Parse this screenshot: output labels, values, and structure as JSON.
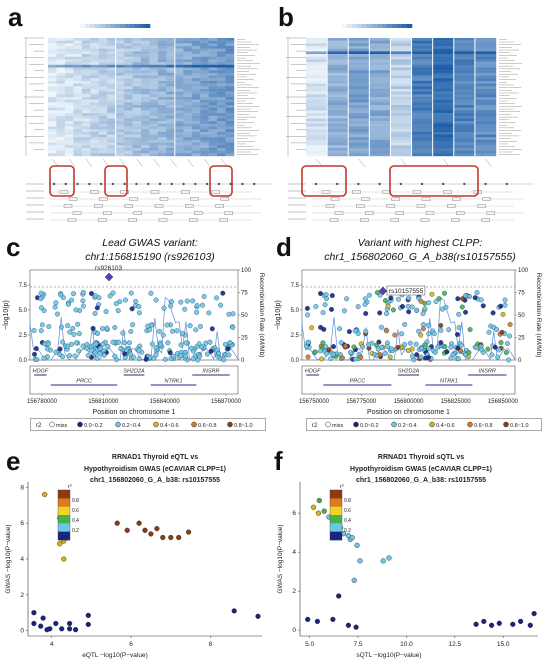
{
  "panels": {
    "a": {
      "label": "a"
    },
    "b": {
      "label": "b"
    },
    "c": {
      "label": "c",
      "title_line1": "Lead GWAS variant:",
      "title_line2": "chr1:156815190 (rs926103)"
    },
    "d": {
      "label": "d",
      "title_line1": "Variant with highest CLPP:",
      "title_line2": "chr1_156802060_G_A_b38(rs10157555)"
    },
    "e": {
      "label": "e",
      "title_line1": "RRNAD1 Thyroid eQTL vs",
      "title_line2": "Hypothyroidism GWAS (eCAVIAR CLPP=1)",
      "title_line3": "chr1_156802060_G_A_b38: rs10157555"
    },
    "f": {
      "label": "f",
      "title_line1": "RRNAD1 Thyroid sQTL vs",
      "title_line2": "Hypothyroidism GWAS (eCAVIAR CLPP=1)",
      "title_line3": "chr1_156802060_G_A_b38: rs10157555"
    }
  },
  "colors": {
    "miss": "#ffffff",
    "bin1": "#1a237e",
    "bin2": "#6ec6e6",
    "bin3": "#46b34a",
    "bin4": "#d4b21e",
    "bin5": "#d9791c",
    "bin6": "#8a3b16",
    "highlight_box": "#c0392b",
    "lead_diamond": "#5b3fb3",
    "heat_low": "#eef5fb",
    "heat_high": "#1f5fa8"
  },
  "locus_legend": {
    "title": "r2",
    "items": [
      "miss",
      "0.0~0.2",
      "0.2~0.4",
      "0.4~0.6",
      "0.6~0.8",
      "0.8~1.0"
    ]
  },
  "scatter_legend": {
    "title": "r²",
    "ticks": [
      "0.8",
      "0.6",
      "0.4",
      "0.2"
    ]
  },
  "chart_data": [
    {
      "panel": "c",
      "type": "scatter",
      "xlabel": "Position on chromosome 1",
      "ylabel": "−log10(p)",
      "y2label": "Recombination Rate (cM/Mb)",
      "xticks": [
        "156780000",
        "156810000",
        "156840000",
        "156870000"
      ],
      "yticks": [
        "0.0",
        "2.5",
        "5.0",
        "7.5"
      ],
      "y2ticks": [
        "0",
        "25",
        "50",
        "75",
        "100"
      ],
      "threshold": 7.3,
      "lead_label": "rs926103",
      "lead_point": [
        156815190,
        8.3
      ],
      "genes": [
        "HDGF",
        "PRCC",
        "SH2D2A",
        "INSRR",
        "NTRK1"
      ]
    },
    {
      "panel": "d",
      "type": "scatter",
      "xlabel": "Position on chromosome 1",
      "ylabel": "−log10(p)",
      "y2label": "Recombination Rate (cM/Mb)",
      "xticks": [
        "156750000",
        "156775000",
        "156800000",
        "156825000",
        "156850000"
      ],
      "yticks": [
        "0.0",
        "2.5",
        "5.0",
        "7.5"
      ],
      "y2ticks": [
        "0",
        "25",
        "50",
        "75",
        "100"
      ],
      "threshold": 7.3,
      "lead_label": "rs10157555",
      "lead_point": [
        156802060,
        6.9
      ],
      "genes": [
        "HDGF",
        "PRCC",
        "SH2D2A",
        "INSRR",
        "NTRK1"
      ]
    },
    {
      "panel": "e",
      "type": "scatter",
      "xlabel": "eQTL −log10(P−value)",
      "ylabel": "GWAS −log10(P−value)",
      "xticks": [
        "4",
        "6",
        "8"
      ],
      "yticks": [
        "0",
        "2",
        "4",
        "6",
        "8"
      ],
      "xlim": [
        3.4,
        9.3
      ],
      "ylim": [
        -0.3,
        8.3
      ],
      "series": [
        {
          "r2bin": "bin1",
          "points": [
            [
              3.55,
              1.0
            ],
            [
              3.55,
              0.4
            ],
            [
              3.72,
              0.25
            ],
            [
              3.78,
              0.7
            ],
            [
              3.88,
              0.05
            ],
            [
              3.95,
              0.1
            ],
            [
              4.1,
              0.4
            ],
            [
              4.25,
              0.1
            ],
            [
              4.45,
              0.4
            ],
            [
              4.45,
              0.1
            ],
            [
              4.6,
              0.05
            ],
            [
              4.92,
              0.35
            ],
            [
              4.92,
              0.85
            ],
            [
              8.6,
              1.1
            ],
            [
              9.2,
              0.8
            ]
          ]
        },
        {
          "r2bin": "bin4",
          "points": [
            [
              3.82,
              7.6
            ],
            [
              4.2,
              6.3
            ],
            [
              4.3,
              5.0
            ],
            [
              4.2,
              4.85
            ],
            [
              4.3,
              4.0
            ]
          ]
        },
        {
          "r2bin": "bin6",
          "points": [
            [
              5.65,
              6.0
            ],
            [
              5.9,
              5.6
            ],
            [
              6.2,
              6.0
            ],
            [
              6.35,
              5.6
            ],
            [
              6.5,
              5.4
            ],
            [
              6.65,
              5.7
            ],
            [
              6.8,
              5.2
            ],
            [
              7.0,
              5.2
            ],
            [
              7.2,
              5.2
            ],
            [
              7.45,
              5.5
            ]
          ]
        }
      ]
    },
    {
      "panel": "f",
      "type": "scatter",
      "xlabel": "sQTL −log10(P−value)",
      "ylabel": "GWAS −log10(P−value)",
      "xticks": [
        "5.0",
        "7.5",
        "10.0",
        "12.5",
        "15.0"
      ],
      "yticks": [
        "0",
        "2",
        "4",
        "6"
      ],
      "xlim": [
        4.5,
        16.8
      ],
      "ylim": [
        -0.3,
        7.6
      ],
      "series": [
        {
          "r2bin": "bin1",
          "points": [
            [
              4.9,
              0.55
            ],
            [
              5.4,
              0.45
            ],
            [
              6.2,
              0.55
            ],
            [
              6.5,
              1.75
            ],
            [
              7.0,
              0.25
            ],
            [
              7.4,
              0.15
            ],
            [
              13.6,
              0.3
            ],
            [
              14.0,
              0.45
            ],
            [
              14.4,
              0.25
            ],
            [
              14.8,
              0.35
            ],
            [
              15.5,
              0.3
            ],
            [
              15.9,
              0.45
            ],
            [
              16.4,
              0.25
            ],
            [
              16.6,
              0.85
            ]
          ]
        },
        {
          "r2bin": "bin4",
          "points": [
            [
              5.2,
              6.3
            ],
            [
              5.45,
              6.0
            ]
          ]
        },
        {
          "r2bin": "bin3",
          "points": [
            [
              5.5,
              6.65
            ],
            [
              5.75,
              6.1
            ]
          ]
        },
        {
          "r2bin": "bin2",
          "points": [
            [
              6.0,
              5.8
            ],
            [
              6.3,
              5.55
            ],
            [
              6.6,
              5.25
            ],
            [
              6.75,
              4.95
            ],
            [
              7.0,
              4.85
            ],
            [
              7.1,
              4.65
            ],
            [
              7.2,
              4.75
            ],
            [
              7.45,
              4.35
            ],
            [
              7.6,
              3.55
            ],
            [
              8.8,
              3.55
            ],
            [
              9.1,
              3.7
            ],
            [
              7.3,
              2.55
            ]
          ]
        }
      ]
    }
  ]
}
